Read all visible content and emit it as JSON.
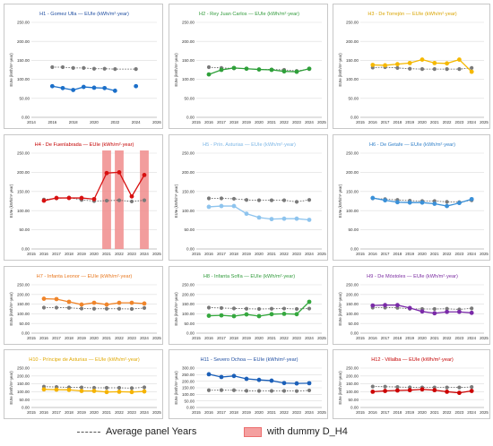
{
  "legend": {
    "average_label": "Average panel Years",
    "dummy_label": "with dummy D_H4",
    "dummy_color": "#f08c8c"
  },
  "chart_data": [
    {
      "id": "h1",
      "type": "line",
      "title": "H1 - Gomez Ulla — EUIe (kWh/m²·year)",
      "title_color": "#1f4ea1",
      "ylabel": "EUIe (kWh/m²·year)",
      "ylim": [
        0,
        250
      ],
      "yticks": [
        0,
        50,
        100,
        150,
        200,
        250
      ],
      "xlim": [
        2014,
        2026
      ],
      "xticks": [
        2014,
        2016,
        2018,
        2020,
        2022,
        2024,
        2026
      ],
      "series_color": "#1b6fc9",
      "x": [
        2016,
        2017,
        2018,
        2019,
        2020,
        2021,
        2022,
        2024
      ],
      "values": [
        82,
        77,
        72,
        80,
        78,
        77,
        70,
        82
      ],
      "gaps_after": [
        2022
      ],
      "average": {
        "x": [
          2016,
          2017,
          2018,
          2019,
          2020,
          2021,
          2022,
          2024
        ],
        "values": [
          132,
          132,
          130,
          130,
          128,
          128,
          127,
          127
        ]
      },
      "dummy_years": []
    },
    {
      "id": "h2",
      "type": "line",
      "title": "H2 - Rey Juan Carlos — EUIe (kWh/m²·year)",
      "title_color": "#2f9a3a",
      "ylabel": "EUIe (kWh/m²·year)",
      "ylim": [
        0,
        250
      ],
      "yticks": [
        0,
        50,
        100,
        150,
        200,
        250
      ],
      "xlim": [
        2015,
        2025
      ],
      "xticks": [
        2015,
        2016,
        2017,
        2018,
        2019,
        2020,
        2021,
        2022,
        2023,
        2024,
        2025
      ],
      "series_color": "#2fa03a",
      "x": [
        2016,
        2017,
        2018,
        2019,
        2020,
        2021,
        2022,
        2023,
        2024
      ],
      "values": [
        113,
        125,
        130,
        128,
        126,
        125,
        121,
        120,
        128
      ],
      "gaps_after": [],
      "average": {
        "x": [
          2016,
          2017,
          2018,
          2019,
          2020,
          2021,
          2022,
          2023,
          2024
        ],
        "values": [
          132,
          130,
          129,
          128,
          126,
          126,
          125,
          122,
          127
        ]
      },
      "dummy_years": []
    },
    {
      "id": "h3",
      "type": "line",
      "title": "H3 - De Torrejón — EUIe (kWh/m²·year)",
      "title_color": "#d9a400",
      "ylabel": "EUIe (kWh/m²·year)",
      "ylim": [
        0,
        250
      ],
      "yticks": [
        0,
        50,
        100,
        150,
        200,
        250
      ],
      "xlim": [
        2015,
        2025
      ],
      "xticks": [
        2015,
        2016,
        2017,
        2018,
        2019,
        2020,
        2021,
        2022,
        2023,
        2024,
        2025
      ],
      "series_color": "#f5b800",
      "x": [
        2016,
        2017,
        2018,
        2019,
        2020,
        2021,
        2022,
        2023,
        2024
      ],
      "values": [
        138,
        137,
        140,
        143,
        152,
        143,
        142,
        152,
        120
      ],
      "gaps_after": [],
      "average": {
        "x": [
          2016,
          2017,
          2018,
          2019,
          2020,
          2021,
          2022,
          2023,
          2024
        ],
        "values": [
          131,
          132,
          130,
          128,
          127,
          127,
          127,
          127,
          130
        ]
      },
      "dummy_years": []
    },
    {
      "id": "h4",
      "type": "line",
      "title": "H4 - De Fuenlabrada — EUIe (kWh/m²·year)",
      "title_color": "#c40000",
      "ylabel": "EUIe (kWh/m²·year)",
      "ylim": [
        0,
        250
      ],
      "yticks": [
        0,
        50,
        100,
        150,
        200,
        250
      ],
      "xlim": [
        2015,
        2025
      ],
      "xticks": [
        2015,
        2016,
        2017,
        2018,
        2019,
        2020,
        2021,
        2022,
        2023,
        2024,
        2025
      ],
      "series_color": "#d81010",
      "x": [
        2016,
        2017,
        2018,
        2019,
        2020,
        2021,
        2022,
        2023,
        2024
      ],
      "values": [
        126,
        133,
        133,
        133,
        130,
        198,
        200,
        137,
        193
      ],
      "gaps_after": [],
      "average": {
        "x": [
          2016,
          2017,
          2018,
          2019,
          2020,
          2021,
          2022,
          2023,
          2024
        ],
        "values": [
          129,
          132,
          134,
          128,
          125,
          126,
          127,
          124,
          127
        ]
      },
      "dummy_years": [
        2021,
        2022,
        2024
      ]
    },
    {
      "id": "h5",
      "type": "line",
      "title": "H5 - Prín. Asturias — EUIe (kWh/m²·year)",
      "title_color": "#7cb6e6",
      "ylabel": "EUIe (kWh/m²·year)",
      "ylim": [
        0,
        250
      ],
      "yticks": [
        0,
        50,
        100,
        150,
        200,
        250
      ],
      "xlim": [
        2015,
        2025
      ],
      "xticks": [
        2015,
        2016,
        2017,
        2018,
        2019,
        2020,
        2021,
        2022,
        2023,
        2024,
        2025
      ],
      "series_color": "#8ec4ee",
      "x": [
        2016,
        2017,
        2018,
        2019,
        2020,
        2021,
        2022,
        2023,
        2024
      ],
      "values": [
        110,
        112,
        112,
        92,
        82,
        78,
        79,
        79,
        76
      ],
      "gaps_after": [],
      "average": {
        "x": [
          2016,
          2017,
          2018,
          2019,
          2020,
          2021,
          2022,
          2023,
          2024
        ],
        "values": [
          132,
          132,
          131,
          128,
          127,
          127,
          127,
          123,
          128
        ]
      },
      "dummy_years": []
    },
    {
      "id": "h6",
      "type": "line",
      "title": "H6 - De Getafe — EUIe (kWh/m²·year)",
      "title_color": "#2f7fc8",
      "ylabel": "EUIe (kWh/m²·year)",
      "ylim": [
        0,
        250
      ],
      "yticks": [
        0,
        50,
        100,
        150,
        200,
        250
      ],
      "xlim": [
        2015,
        2025
      ],
      "xticks": [
        2015,
        2016,
        2017,
        2018,
        2019,
        2020,
        2021,
        2022,
        2023,
        2024,
        2025
      ],
      "series_color": "#3a90d8",
      "x": [
        2016,
        2017,
        2018,
        2019,
        2020,
        2021,
        2022,
        2023,
        2024
      ],
      "values": [
        133,
        127,
        122,
        121,
        121,
        118,
        112,
        120,
        130
      ],
      "gaps_after": [],
      "average": {
        "x": [
          2016,
          2017,
          2018,
          2019,
          2020,
          2021,
          2022,
          2023,
          2024
        ],
        "values": [
          132,
          130,
          128,
          126,
          125,
          125,
          123,
          122,
          127
        ]
      },
      "dummy_years": []
    },
    {
      "id": "h7",
      "type": "line",
      "title": "H7 - Infanta Leonor — EUIe (kWh/m²·year)",
      "title_color": "#e8761c",
      "ylabel": "EUIe (kWh/m²·year)",
      "ylim": [
        0,
        250
      ],
      "yticks": [
        0,
        50,
        100,
        150,
        200,
        250
      ],
      "xlim": [
        2015,
        2025
      ],
      "xticks": [
        2015,
        2016,
        2017,
        2018,
        2019,
        2020,
        2021,
        2022,
        2023,
        2024,
        2025
      ],
      "series_color": "#f0852a",
      "x": [
        2016,
        2017,
        2018,
        2019,
        2020,
        2021,
        2022,
        2023,
        2024
      ],
      "values": [
        178,
        176,
        162,
        148,
        157,
        148,
        157,
        157,
        153
      ],
      "gaps_after": [],
      "average": {
        "x": [
          2016,
          2017,
          2018,
          2019,
          2020,
          2021,
          2022,
          2023,
          2024
        ],
        "values": [
          132,
          132,
          131,
          127,
          126,
          126,
          126,
          125,
          130
        ]
      },
      "dummy_years": []
    },
    {
      "id": "h8",
      "type": "line",
      "title": "H8 - Infanta Sofía — EUIe (kWh/m²·year)",
      "title_color": "#2f9a3a",
      "ylabel": "EUIe (kWh/m²·year)",
      "ylim": [
        0,
        250
      ],
      "yticks": [
        0,
        50,
        100,
        150,
        200,
        250
      ],
      "xlim": [
        2015,
        2025
      ],
      "xticks": [
        2015,
        2016,
        2017,
        2018,
        2019,
        2020,
        2021,
        2022,
        2023,
        2024,
        2025
      ],
      "series_color": "#35a83e",
      "x": [
        2016,
        2017,
        2018,
        2019,
        2020,
        2021,
        2022,
        2023,
        2024
      ],
      "values": [
        90,
        92,
        88,
        97,
        88,
        98,
        100,
        98,
        162
      ],
      "gaps_after": [],
      "average": {
        "x": [
          2016,
          2017,
          2018,
          2019,
          2020,
          2021,
          2022,
          2023,
          2024
        ],
        "values": [
          132,
          130,
          128,
          126,
          125,
          126,
          127,
          125,
          127
        ]
      },
      "dummy_years": []
    },
    {
      "id": "h9",
      "type": "line",
      "title": "H9 - De Móstoles — EUIe (kWh/m²·year)",
      "title_color": "#7a2aa0",
      "ylabel": "EUIe (kWh/m²·year)",
      "ylim": [
        0,
        250
      ],
      "yticks": [
        0,
        50,
        100,
        150,
        200,
        250
      ],
      "xlim": [
        2015,
        2025
      ],
      "xticks": [
        2015,
        2016,
        2017,
        2018,
        2019,
        2020,
        2021,
        2022,
        2023,
        2024,
        2025
      ],
      "series_color": "#7a2aa8",
      "x": [
        2016,
        2017,
        2018,
        2019,
        2020,
        2021,
        2022,
        2023,
        2024
      ],
      "values": [
        143,
        145,
        145,
        130,
        112,
        103,
        110,
        110,
        105
      ],
      "gaps_after": [],
      "average": {
        "x": [
          2016,
          2017,
          2018,
          2019,
          2020,
          2021,
          2022,
          2023,
          2024
        ],
        "values": [
          132,
          132,
          131,
          126,
          125,
          125,
          126,
          123,
          128
        ]
      },
      "dummy_years": []
    },
    {
      "id": "h10",
      "type": "line",
      "title": "H10 - Príncipe de Asturias — EUIe (kWh/m²·year)",
      "title_color": "#e0a800",
      "ylabel": "EUIe (kWh/m²·year)",
      "ylim": [
        0,
        250
      ],
      "yticks": [
        0,
        50,
        100,
        150,
        200,
        250
      ],
      "xlim": [
        2015,
        2025
      ],
      "xticks": [
        2015,
        2016,
        2017,
        2018,
        2019,
        2020,
        2021,
        2022,
        2023,
        2024,
        2025
      ],
      "series_color": "#f5b300",
      "x": [
        2016,
        2017,
        2018,
        2019,
        2020,
        2021,
        2022,
        2023,
        2024
      ],
      "values": [
        115,
        113,
        112,
        105,
        105,
        98,
        100,
        98,
        102
      ],
      "gaps_after": [],
      "average": {
        "x": [
          2016,
          2017,
          2018,
          2019,
          2020,
          2021,
          2022,
          2023,
          2024
        ],
        "values": [
          132,
          130,
          128,
          127,
          125,
          125,
          125,
          123,
          128
        ]
      },
      "dummy_years": []
    },
    {
      "id": "h11",
      "type": "line",
      "title": "H11 - Severo Ochoa — EUIe (kWh/m²·year)",
      "title_color": "#1f4ea1",
      "ylabel": "EUIe (kWh/m²·year)",
      "ylim": [
        0,
        300
      ],
      "yticks": [
        0,
        50,
        100,
        150,
        200,
        250,
        300
      ],
      "xlim": [
        2015,
        2025
      ],
      "xticks": [
        2015,
        2016,
        2017,
        2018,
        2019,
        2020,
        2021,
        2022,
        2023,
        2024,
        2025
      ],
      "series_color": "#1b5fb8",
      "x": [
        2016,
        2017,
        2018,
        2019,
        2020,
        2021,
        2022,
        2023,
        2024
      ],
      "values": [
        253,
        232,
        240,
        218,
        210,
        204,
        186,
        183,
        185
      ],
      "gaps_after": [],
      "average": {
        "x": [
          2016,
          2017,
          2018,
          2019,
          2020,
          2021,
          2022,
          2023,
          2024
        ],
        "values": [
          131,
          132,
          131,
          127,
          126,
          126,
          126,
          125,
          130
        ]
      },
      "dummy_years": []
    },
    {
      "id": "h12",
      "type": "line",
      "title": "H12 - Villalba — EUIe (kWh/m²·year)",
      "title_color": "#c40000",
      "ylabel": "EUIe (kWh/m²·year)",
      "ylim": [
        0,
        250
      ],
      "yticks": [
        0,
        50,
        100,
        150,
        200,
        250
      ],
      "xlim": [
        2015,
        2025
      ],
      "xticks": [
        2015,
        2016,
        2017,
        2018,
        2019,
        2020,
        2021,
        2022,
        2023,
        2024,
        2025
      ],
      "series_color": "#cc0000",
      "x": [
        2016,
        2017,
        2018,
        2019,
        2020,
        2021,
        2022,
        2023,
        2024
      ],
      "values": [
        100,
        105,
        108,
        110,
        115,
        110,
        100,
        93,
        105
      ],
      "gaps_after": [],
      "average": {
        "x": [
          2016,
          2017,
          2018,
          2019,
          2020,
          2021,
          2022,
          2023,
          2024
        ],
        "values": [
          133,
          132,
          130,
          128,
          127,
          127,
          127,
          127,
          130
        ]
      },
      "dummy_years": []
    }
  ]
}
